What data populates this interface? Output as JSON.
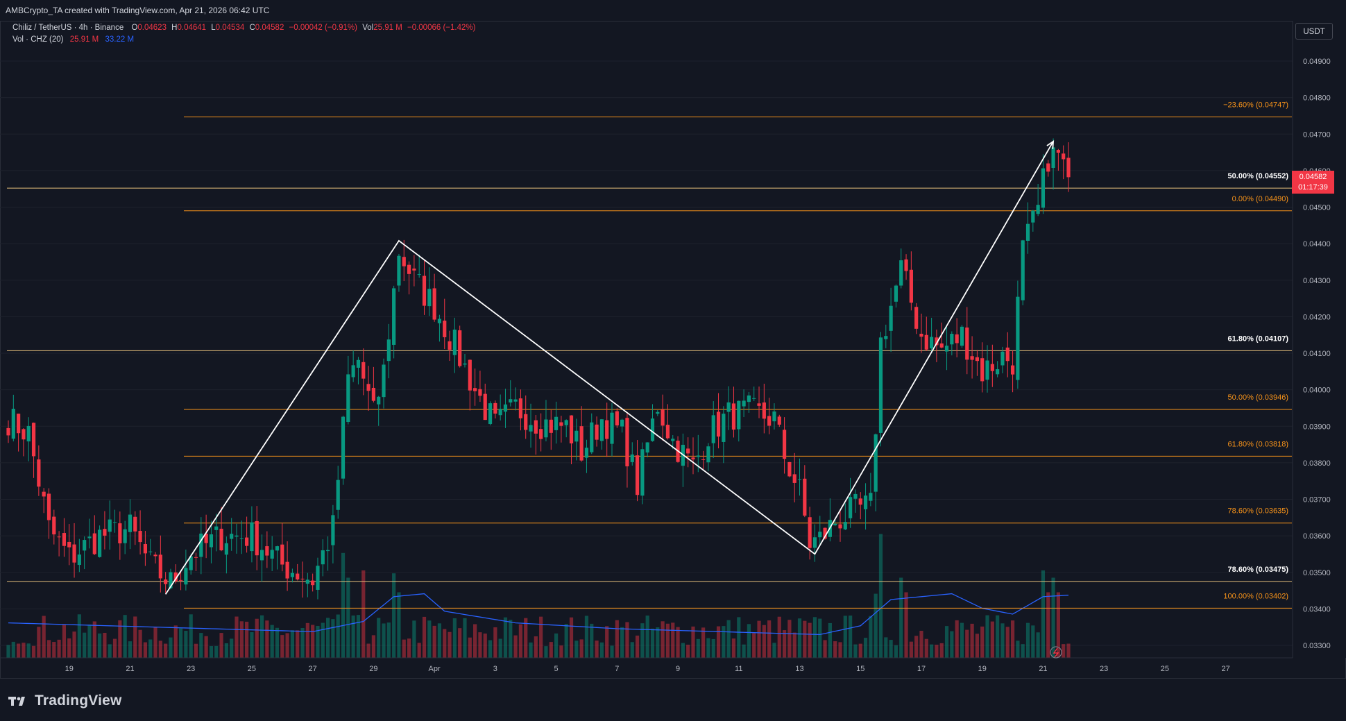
{
  "header": {
    "caption": "AMBCrypto_TA created with TradingView.com, Apr 21, 2026 06:42 UTC"
  },
  "legend": {
    "symbol": "Chiliz / TetherUS · 4h · Binance",
    "open_label": "O",
    "open": "0.04623",
    "high_label": "H",
    "high": "0.04641",
    "low_label": "L",
    "low": "0.04534",
    "close_label": "C",
    "close": "0.04582",
    "change": "−0.00042 (−0.91%)",
    "vol_label": "Vol",
    "vol": "25.91 M",
    "vol_change": "−0.00066 (−1.42%)",
    "vol_indicator": "Vol · CHZ (20)",
    "vol_value": "25.91 M",
    "vol_ma": "33.22 M"
  },
  "currency_button": "USDT",
  "price_tag": {
    "price": "0.04582",
    "countdown": "01:17:39"
  },
  "brand": {
    "name": "TradingView"
  },
  "colors": {
    "background": "#131722",
    "bull": "#089981",
    "bear": "#f23645",
    "fib_orange": "#f7931a",
    "fib_yellow": "#e5c07b",
    "vol_ma": "#2962ff",
    "zigzag": "#ffffff"
  },
  "chart_data": {
    "type": "candlestick",
    "timeframe": "4h",
    "y_axis": {
      "range": [
        0.0325,
        0.0497
      ],
      "ticks": [
        "0.04900",
        "0.04800",
        "0.04700",
        "0.04600",
        "0.04500",
        "0.04400",
        "0.04300",
        "0.04200",
        "0.04100",
        "0.04000",
        "0.03900",
        "0.03800",
        "0.03700",
        "0.03600",
        "0.03500",
        "0.03400",
        "0.03300"
      ]
    },
    "x_axis": {
      "ticks": [
        {
          "label": "19",
          "idx": 12
        },
        {
          "label": "21",
          "idx": 24
        },
        {
          "label": "23",
          "idx": 36
        },
        {
          "label": "25",
          "idx": 48
        },
        {
          "label": "27",
          "idx": 60
        },
        {
          "label": "29",
          "idx": 72
        },
        {
          "label": "Apr",
          "idx": 84
        },
        {
          "label": "3",
          "idx": 96
        },
        {
          "label": "5",
          "idx": 108
        },
        {
          "label": "7",
          "idx": 120
        },
        {
          "label": "9",
          "idx": 132
        },
        {
          "label": "11",
          "idx": 144
        },
        {
          "label": "13",
          "idx": 156
        },
        {
          "label": "15",
          "idx": 168
        },
        {
          "label": "17",
          "idx": 180
        },
        {
          "label": "19",
          "idx": 192
        },
        {
          "label": "21",
          "idx": 204
        },
        {
          "label": "23",
          "idx": 216
        },
        {
          "label": "25",
          "idx": 228
        },
        {
          "label": "27",
          "idx": 240
        }
      ]
    },
    "fib_levels": [
      {
        "label": "−23.60% (0.04747)",
        "value": 0.04747,
        "color": "orange",
        "from_idx": 35
      },
      {
        "label": "50.00% (0.04552)",
        "value": 0.04552,
        "color": "yellow",
        "from_idx": 0
      },
      {
        "label": "0.00% (0.04490)",
        "value": 0.0449,
        "color": "orange",
        "from_idx": 35
      },
      {
        "label": "61.80% (0.04107)",
        "value": 0.04107,
        "color": "yellow",
        "from_idx": 0
      },
      {
        "label": "50.00% (0.03946)",
        "value": 0.03946,
        "color": "orange",
        "from_idx": 35
      },
      {
        "label": "61.80% (0.03818)",
        "value": 0.03818,
        "color": "orange",
        "from_idx": 35
      },
      {
        "label": "78.60% (0.03635)",
        "value": 0.03635,
        "color": "orange",
        "from_idx": 35
      },
      {
        "label": "78.60% (0.03475)",
        "value": 0.03475,
        "color": "yellow",
        "from_idx": 0
      },
      {
        "label": "100.00% (0.03402)",
        "value": 0.03402,
        "color": "orange",
        "from_idx": 35
      }
    ],
    "zigzag": [
      {
        "idx": 31,
        "price": 0.0344
      },
      {
        "idx": 77,
        "price": 0.04408
      },
      {
        "idx": 159,
        "price": 0.0355
      },
      {
        "idx": 206,
        "price": 0.0468
      }
    ],
    "anchors": [
      {
        "idx": 0,
        "price": 0.0392
      },
      {
        "idx": 4,
        "price": 0.0388
      },
      {
        "idx": 8,
        "price": 0.0362
      },
      {
        "idx": 12,
        "price": 0.0354
      },
      {
        "idx": 18,
        "price": 0.036
      },
      {
        "idx": 24,
        "price": 0.0362
      },
      {
        "idx": 28,
        "price": 0.0352
      },
      {
        "idx": 32,
        "price": 0.0347
      },
      {
        "idx": 36,
        "price": 0.0355
      },
      {
        "idx": 42,
        "price": 0.036
      },
      {
        "idx": 48,
        "price": 0.036
      },
      {
        "idx": 54,
        "price": 0.0352
      },
      {
        "idx": 60,
        "price": 0.0348
      },
      {
        "idx": 64,
        "price": 0.0362
      },
      {
        "idx": 67,
        "price": 0.0403
      },
      {
        "idx": 69,
        "price": 0.0408
      },
      {
        "idx": 72,
        "price": 0.0393
      },
      {
        "idx": 74,
        "price": 0.0405
      },
      {
        "idx": 77,
        "price": 0.0438
      },
      {
        "idx": 80,
        "price": 0.043
      },
      {
        "idx": 84,
        "price": 0.0423
      },
      {
        "idx": 88,
        "price": 0.0412
      },
      {
        "idx": 92,
        "price": 0.04
      },
      {
        "idx": 96,
        "price": 0.039
      },
      {
        "idx": 100,
        "price": 0.0395
      },
      {
        "idx": 105,
        "price": 0.0391
      },
      {
        "idx": 110,
        "price": 0.039
      },
      {
        "idx": 113,
        "price": 0.0383
      },
      {
        "idx": 117,
        "price": 0.0392
      },
      {
        "idx": 121,
        "price": 0.0388
      },
      {
        "idx": 124,
        "price": 0.0374
      },
      {
        "idx": 128,
        "price": 0.0396
      },
      {
        "idx": 131,
        "price": 0.0386
      },
      {
        "idx": 135,
        "price": 0.0379
      },
      {
        "idx": 138,
        "price": 0.0388
      },
      {
        "idx": 142,
        "price": 0.0393
      },
      {
        "idx": 146,
        "price": 0.0394
      },
      {
        "idx": 151,
        "price": 0.0392
      },
      {
        "idx": 153,
        "price": 0.0382
      },
      {
        "idx": 156,
        "price": 0.0372
      },
      {
        "idx": 158,
        "price": 0.0358
      },
      {
        "idx": 160,
        "price": 0.0359
      },
      {
        "idx": 163,
        "price": 0.0364
      },
      {
        "idx": 167,
        "price": 0.0367
      },
      {
        "idx": 170,
        "price": 0.0368
      },
      {
        "idx": 172,
        "price": 0.0413
      },
      {
        "idx": 176,
        "price": 0.0433
      },
      {
        "idx": 180,
        "price": 0.0415
      },
      {
        "idx": 184,
        "price": 0.0411
      },
      {
        "idx": 188,
        "price": 0.0415
      },
      {
        "idx": 192,
        "price": 0.0405
      },
      {
        "idx": 196,
        "price": 0.0409
      },
      {
        "idx": 198,
        "price": 0.0408
      },
      {
        "idx": 200,
        "price": 0.0438
      },
      {
        "idx": 203,
        "price": 0.0449
      },
      {
        "idx": 205,
        "price": 0.0464
      },
      {
        "idx": 207,
        "price": 0.0464
      },
      {
        "idx": 209,
        "price": 0.04582
      }
    ],
    "vol_ma_anchors": [
      {
        "idx": 0,
        "v": 0.24
      },
      {
        "idx": 20,
        "v": 0.22
      },
      {
        "idx": 40,
        "v": 0.2
      },
      {
        "idx": 60,
        "v": 0.18
      },
      {
        "idx": 70,
        "v": 0.25
      },
      {
        "idx": 76,
        "v": 0.42
      },
      {
        "idx": 82,
        "v": 0.44
      },
      {
        "idx": 86,
        "v": 0.32
      },
      {
        "idx": 100,
        "v": 0.24
      },
      {
        "idx": 120,
        "v": 0.2
      },
      {
        "idx": 140,
        "v": 0.18
      },
      {
        "idx": 160,
        "v": 0.16
      },
      {
        "idx": 168,
        "v": 0.22
      },
      {
        "idx": 174,
        "v": 0.4
      },
      {
        "idx": 186,
        "v": 0.44
      },
      {
        "idx": 192,
        "v": 0.34
      },
      {
        "idx": 198,
        "v": 0.3
      },
      {
        "idx": 204,
        "v": 0.42
      },
      {
        "idx": 209,
        "v": 0.43
      }
    ]
  }
}
